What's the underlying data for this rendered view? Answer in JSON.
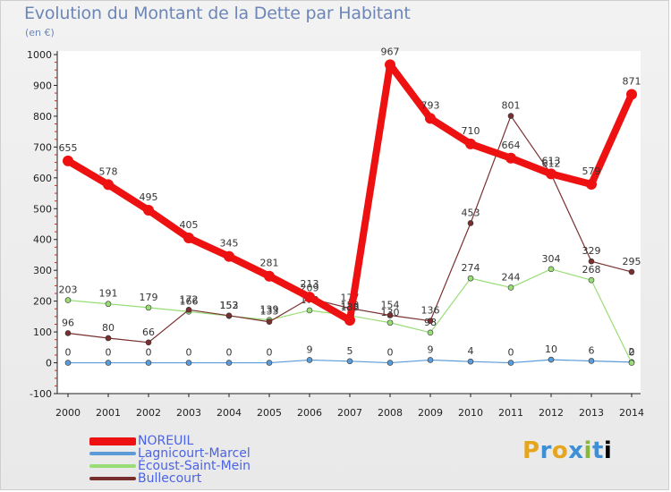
{
  "chart_data": {
    "type": "line",
    "title": "Evolution du Montant de la Dette par Habitant",
    "unit_label": "(en €)",
    "xlabel": "",
    "ylabel": "",
    "x": [
      "2000",
      "2001",
      "2002",
      "2003",
      "2004",
      "2005",
      "2006",
      "2007",
      "2008",
      "2009",
      "2010",
      "2011",
      "2012",
      "2013",
      "2014"
    ],
    "ylim": [
      -100,
      1000
    ],
    "yticks": [
      -100,
      0,
      100,
      200,
      300,
      400,
      500,
      600,
      700,
      800,
      900,
      1000
    ],
    "grid": false,
    "series": [
      {
        "name": "NOREUIL",
        "color": "#ee1111",
        "bold": true,
        "values": [
          655,
          578,
          495,
          405,
          345,
          281,
          213,
          138,
          967,
          793,
          710,
          664,
          613,
          579,
          871
        ]
      },
      {
        "name": "Lagnicourt-Marcel",
        "color": "#5a9bd8",
        "bold": false,
        "values": [
          0,
          0,
          0,
          0,
          0,
          0,
          9,
          5,
          0,
          9,
          4,
          0,
          10,
          6,
          2
        ]
      },
      {
        "name": "Écoust-Saint-Mein",
        "color": "#99dd77",
        "bold": false,
        "values": [
          203,
          191,
          179,
          166,
          152,
          139,
          170,
          153,
          130,
          98,
          274,
          244,
          304,
          268,
          0
        ]
      },
      {
        "name": "Bullecourt",
        "color": "#7a2f2f",
        "bold": false,
        "values": [
          96,
          80,
          66,
          172,
          153,
          133,
          209,
          177,
          154,
          136,
          453,
          801,
          612,
          329,
          295
        ]
      }
    ]
  },
  "brand": [
    "P",
    "r",
    "o",
    "x",
    "i",
    "t",
    "i"
  ]
}
